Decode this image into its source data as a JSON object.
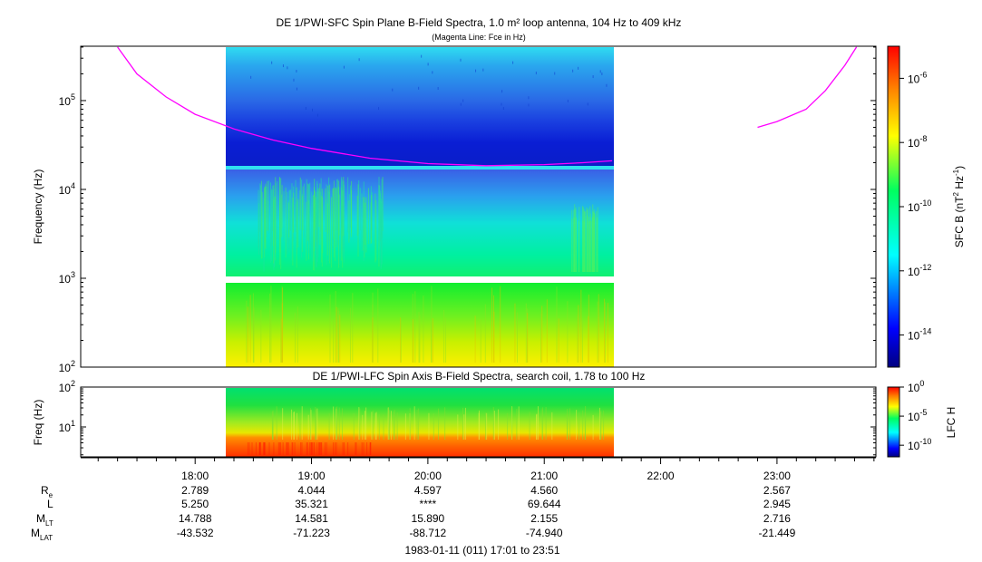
{
  "chart_data": [
    {
      "type": "heatmap",
      "title": "DE 1/PWI-SFC  Spin Plane B-Field Spectra, 1.0 m² loop antenna, 104 Hz to 409 kHz",
      "subtitle": "(Magenta Line: Fce in Hz)",
      "ylabel": "Frequency (Hz)",
      "yscale": "log",
      "ylim": [
        100,
        409000
      ],
      "yticks": [
        100,
        1000,
        10000,
        100000
      ],
      "ytick_labels": [
        [
          "10",
          "2"
        ],
        [
          "10",
          "3"
        ],
        [
          "10",
          "4"
        ],
        [
          "10",
          "5"
        ]
      ],
      "xlim": [
        "17:01",
        "23:51"
      ],
      "data_time_range": [
        "18:25",
        "21:35"
      ],
      "gap_frequency_hz": [
        900,
        1080
      ],
      "colorbar": {
        "label": "SFC B (nT",
        "label_exp1": "2",
        "label_mid": " Hz",
        "label_exp2": "-1",
        "label_end": ")",
        "scale": "log",
        "range": [
          1e-15,
          1e-05
        ],
        "ticks": [
          [
            "10",
            "-6"
          ],
          [
            "10",
            "-8"
          ],
          [
            "10",
            "-10"
          ],
          [
            "10",
            "-12"
          ],
          [
            "10",
            "-14"
          ]
        ],
        "tick_values": [
          1e-06,
          1e-08,
          1e-10,
          1e-12,
          1e-14
        ]
      },
      "series": [
        {
          "name": "Fce in Hz",
          "color": "#ff00ff",
          "segments": [
            [
              [
                "17:20",
                400000
              ],
              [
                "17:30",
                200000
              ],
              [
                "17:45",
                110000
              ],
              [
                "18:00",
                70000
              ],
              [
                "18:20",
                48000
              ],
              [
                "18:40",
                36000
              ],
              [
                "19:00",
                29000
              ],
              [
                "19:30",
                22500
              ],
              [
                "20:00",
                19500
              ],
              [
                "20:30",
                18500
              ],
              [
                "21:00",
                19000
              ],
              [
                "21:20",
                20000
              ],
              [
                "21:35",
                21000
              ]
            ],
            [
              [
                "22:50",
                50000
              ],
              [
                "23:00",
                58000
              ],
              [
                "23:15",
                80000
              ],
              [
                "23:25",
                130000
              ],
              [
                "23:35",
                250000
              ],
              [
                "23:41",
                400000
              ]
            ]
          ]
        }
      ]
    },
    {
      "type": "heatmap",
      "title": "DE 1/PWI-LFC  Spin Axis B-Field Spectra, search coil, 1.78 to 100 Hz",
      "ylabel": "Freq (Hz)",
      "yscale": "log",
      "ylim": [
        1.78,
        100
      ],
      "yticks": [
        10,
        100
      ],
      "ytick_labels": [
        [
          "10",
          "1"
        ],
        [
          "10",
          "2"
        ]
      ],
      "xlim": [
        "17:01",
        "23:51"
      ],
      "data_time_range": [
        "18:25",
        "21:35"
      ],
      "colorbar": {
        "label": "LFC H",
        "scale": "log",
        "range": [
          1e-12,
          1
        ],
        "ticks": [
          [
            "10",
            "0"
          ],
          [
            "10",
            "-5"
          ],
          [
            "10",
            "-10"
          ]
        ],
        "tick_values": [
          1,
          1e-05,
          1e-10
        ]
      }
    }
  ],
  "xaxis": {
    "tick_labels": [
      "18:00",
      "19:00",
      "20:00",
      "21:00",
      "22:00",
      "23:00"
    ],
    "minor_ticks_per_hour": 5
  },
  "ephemeris": {
    "rows": [
      {
        "label": "R",
        "sub": "e",
        "values": [
          "2.789",
          "4.044",
          "4.597",
          "4.560",
          "",
          "2.567"
        ]
      },
      {
        "label": "L",
        "sub": "",
        "values": [
          "5.250",
          "35.321",
          "****",
          "69.644",
          "",
          "2.945"
        ]
      },
      {
        "label": "M",
        "sub": "LT",
        "values": [
          "14.788",
          "14.581",
          "15.890",
          "2.155",
          "",
          "2.716"
        ]
      },
      {
        "label": "M",
        "sub": "LAT",
        "values": [
          "-43.532",
          "-71.223",
          "-88.712",
          "-74.940",
          "",
          "-21.449"
        ]
      }
    ]
  },
  "footer": "1983-01-11 (011) 17:01 to 23:51"
}
